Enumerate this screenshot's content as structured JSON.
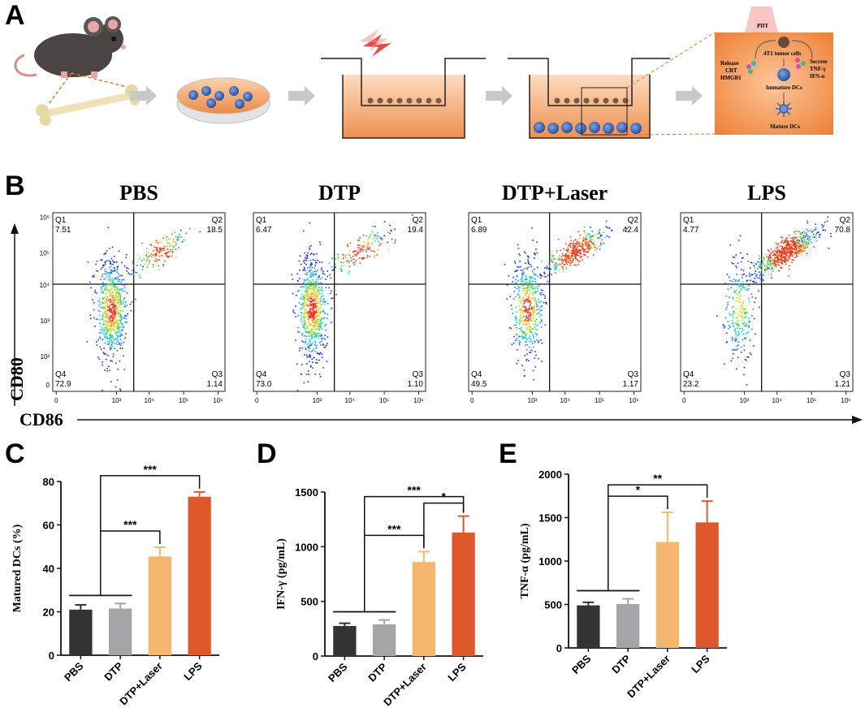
{
  "panels": {
    "A": "A",
    "B": "B",
    "C": "C",
    "D": "D",
    "E": "E"
  },
  "schematic": {
    "pdt": "PDT",
    "tumor": "4T1 tumor cells",
    "release": [
      "Release",
      "CRT",
      "HMGB1"
    ],
    "secrete": [
      "Secrete",
      "TNF-γ",
      "IFN-α"
    ],
    "immature": "Immature DCs",
    "mature": "Mature DCs"
  },
  "flow": {
    "y_axis_label": "CD80",
    "x_axis_label": "CD86",
    "x_ticks": [
      "0",
      "10³",
      "10⁴",
      "10⁵",
      "10⁶"
    ],
    "y_ticks": [
      "10⁶",
      "10⁵",
      "10⁴",
      "10³",
      "10²",
      "0"
    ],
    "plots": [
      {
        "title": "PBS",
        "q1": "7.51",
        "q2": "18.5",
        "q3": "1.14",
        "q4": "72.9"
      },
      {
        "title": "DTP",
        "q1": "6.47",
        "q2": "19.4",
        "q3": "1.10",
        "q4": "73.0"
      },
      {
        "title": "DTP+Laser",
        "q1": "6.89",
        "q2": "42.4",
        "q3": "1.17",
        "q4": "49.5"
      },
      {
        "title": "LPS",
        "q1": "4.77",
        "q2": "70.8",
        "q3": "1.21",
        "q4": "23.2"
      }
    ],
    "quadrant_names": [
      "Q1",
      "Q2",
      "Q3",
      "Q4"
    ]
  },
  "chart_data": [
    {
      "type": "bar",
      "panel": "C",
      "categories": [
        "PBS",
        "DTP",
        "DTP+Laser",
        "LPS"
      ],
      "values": [
        21,
        21.5,
        45.5,
        73
      ],
      "errors": [
        2.2,
        2.3,
        4.2,
        2.2
      ],
      "ylabel": "Matured DCs (%)",
      "ylim": [
        0,
        80
      ],
      "yticks": [
        0,
        20,
        40,
        60,
        80
      ],
      "significance": [
        {
          "label": "***",
          "from": [
            0,
            1
          ],
          "to": 2
        },
        {
          "label": "***",
          "from": [
            0,
            1
          ],
          "to": 3
        }
      ]
    },
    {
      "type": "bar",
      "panel": "D",
      "categories": [
        "PBS",
        "DTP",
        "DTP+Laser",
        "LPS"
      ],
      "values": [
        275,
        290,
        860,
        1130
      ],
      "errors": [
        25,
        40,
        95,
        150
      ],
      "ylabel": "IFN-γ (pg/mL)",
      "ylim": [
        0,
        1500
      ],
      "yticks": [
        0,
        500,
        1000,
        1500
      ],
      "significance": [
        {
          "label": "***",
          "from": [
            0,
            1
          ],
          "to": 2
        },
        {
          "label": "***",
          "from": [
            0,
            1
          ],
          "to": 3
        },
        {
          "label": "*",
          "from": [
            2
          ],
          "to": 3
        }
      ]
    },
    {
      "type": "bar",
      "panel": "E",
      "categories": [
        "PBS",
        "DTP",
        "DTP+Laser",
        "LPS"
      ],
      "values": [
        490,
        505,
        1220,
        1445
      ],
      "errors": [
        35,
        60,
        340,
        245
      ],
      "ylabel": "TNF-α (pg/mL)",
      "ylim": [
        0,
        2000
      ],
      "yticks": [
        0,
        500,
        1000,
        1500,
        2000
      ],
      "significance": [
        {
          "label": "*",
          "from": [
            0,
            1
          ],
          "to": 2
        },
        {
          "label": "**",
          "from": [
            0,
            1
          ],
          "to": 3
        }
      ]
    }
  ],
  "colors": {
    "bars": [
      "#333333",
      "#a5a5a8",
      "#f5b66e",
      "#dc582a"
    ],
    "errors": [
      "#333333",
      "#a5a5a8",
      "#f5b66e",
      "#dc582a"
    ],
    "orange_bg": "#f39a5a",
    "orange_light": "#fbd7b7"
  }
}
